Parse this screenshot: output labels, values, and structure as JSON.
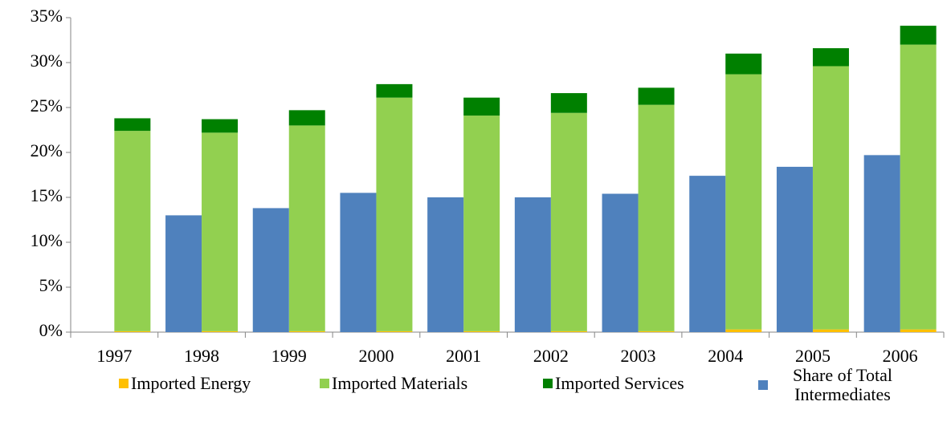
{
  "chart_data": {
    "type": "bar",
    "categories": [
      "1997",
      "1998",
      "1999",
      "2000",
      "2001",
      "2002",
      "2003",
      "2004",
      "2005",
      "2006"
    ],
    "series": [
      {
        "name": "Imported Energy",
        "color": "#ffc000",
        "stack": true,
        "values": [
          0.1,
          0.1,
          0.1,
          0.1,
          0.1,
          0.1,
          0.1,
          0.3,
          0.3,
          0.3
        ]
      },
      {
        "name": "Imported Materials",
        "color": "#92d050",
        "stack": true,
        "values": [
          22.3,
          22.1,
          22.9,
          26.0,
          24.0,
          24.3,
          25.2,
          28.4,
          29.3,
          31.7
        ]
      },
      {
        "name": "Imported Services",
        "color": "#008000",
        "stack": true,
        "values": [
          1.4,
          1.5,
          1.7,
          1.5,
          2.0,
          2.2,
          1.9,
          2.3,
          2.0,
          2.1
        ]
      },
      {
        "name": "Share of Total Intermediates",
        "color": "#4f81bd",
        "stack": false,
        "values": [
          null,
          13.0,
          13.8,
          15.5,
          15.0,
          15.0,
          15.4,
          17.4,
          18.4,
          19.7
        ]
      }
    ],
    "ylim": [
      0,
      35
    ],
    "yticks": [
      {
        "value": 0,
        "label": "0%"
      },
      {
        "value": 5,
        "label": "5%"
      },
      {
        "value": 10,
        "label": "10%"
      },
      {
        "value": 15,
        "label": "15%"
      },
      {
        "value": 20,
        "label": "20%"
      },
      {
        "value": 25,
        "label": "25%"
      },
      {
        "value": 30,
        "label": "30%"
      },
      {
        "value": 35,
        "label": "35%"
      }
    ],
    "grid": false
  }
}
